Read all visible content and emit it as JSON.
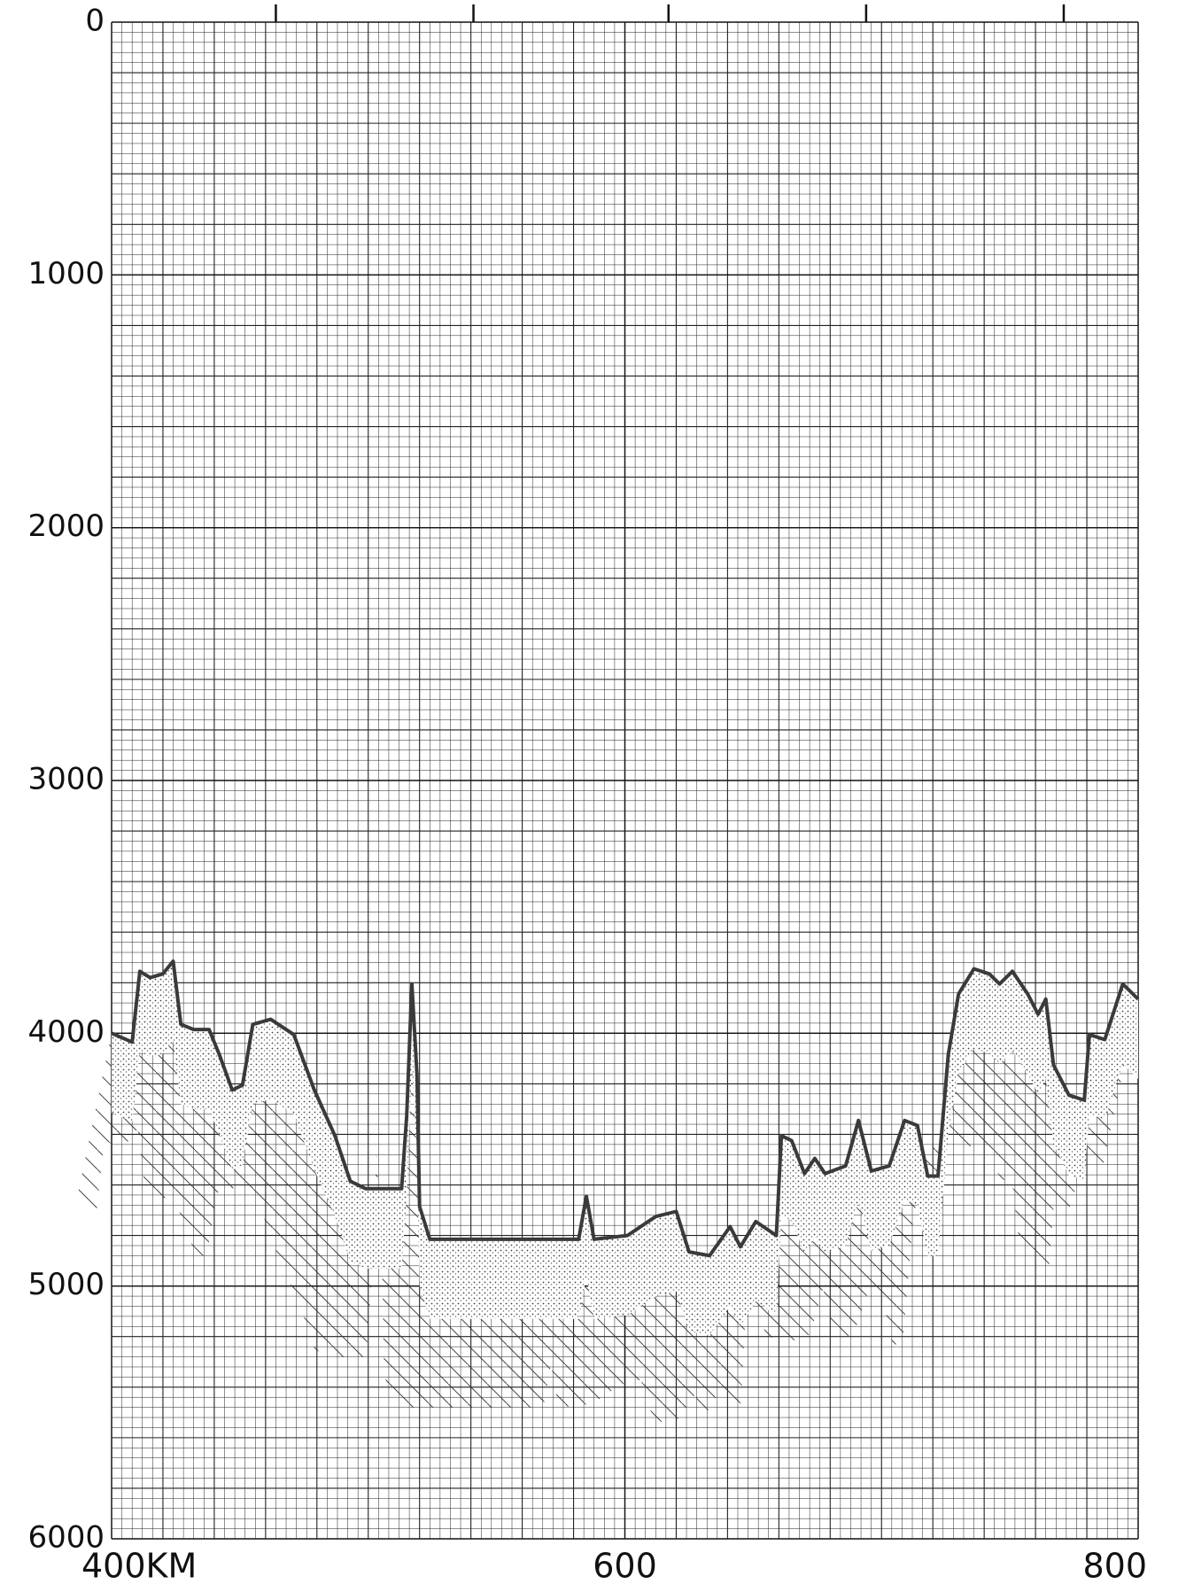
{
  "chart_data": {
    "type": "area",
    "x": [
      400,
      408,
      411,
      415,
      420,
      424,
      427,
      432,
      438,
      442,
      447,
      451,
      455,
      462,
      471,
      479,
      487,
      493,
      499,
      513,
      515,
      517,
      519,
      520,
      524,
      554,
      582,
      585,
      588,
      601,
      612,
      620,
      625,
      633,
      641,
      645,
      651,
      659,
      661,
      665,
      670,
      674,
      678,
      686,
      691,
      696,
      703,
      709,
      714,
      718,
      722,
      726,
      730,
      736,
      742,
      746,
      751,
      757,
      761,
      764,
      767,
      773,
      779,
      781,
      787,
      794,
      800
    ],
    "values": [
      4000,
      4035,
      3755,
      3780,
      3765,
      3715,
      3965,
      3985,
      3985,
      4085,
      4225,
      4205,
      3965,
      3945,
      4005,
      4225,
      4405,
      4585,
      4615,
      4615,
      4325,
      3805,
      4165,
      4685,
      4815,
      4815,
      4815,
      4645,
      4815,
      4800,
      4725,
      4705,
      4865,
      4880,
      4765,
      4845,
      4745,
      4800,
      4405,
      4425,
      4555,
      4495,
      4555,
      4525,
      4345,
      4545,
      4525,
      4345,
      4365,
      4565,
      4565,
      4085,
      3845,
      3745,
      3765,
      3805,
      3755,
      3845,
      3925,
      3865,
      4125,
      4245,
      4265,
      4005,
      4025,
      3805,
      3865
    ],
    "color": "#3a3a3a",
    "xlim": [
      400,
      800
    ],
    "xticks": [
      {
        "value": 400,
        "label": "400KM"
      },
      600,
      800
    ],
    "top_ticks": [
      464,
      541,
      617,
      694,
      771
    ],
    "ylim": [
      6000,
      0
    ],
    "yticks": [
      0,
      1000,
      2000,
      3000,
      4000,
      5000,
      6000
    ],
    "grid": true
  }
}
